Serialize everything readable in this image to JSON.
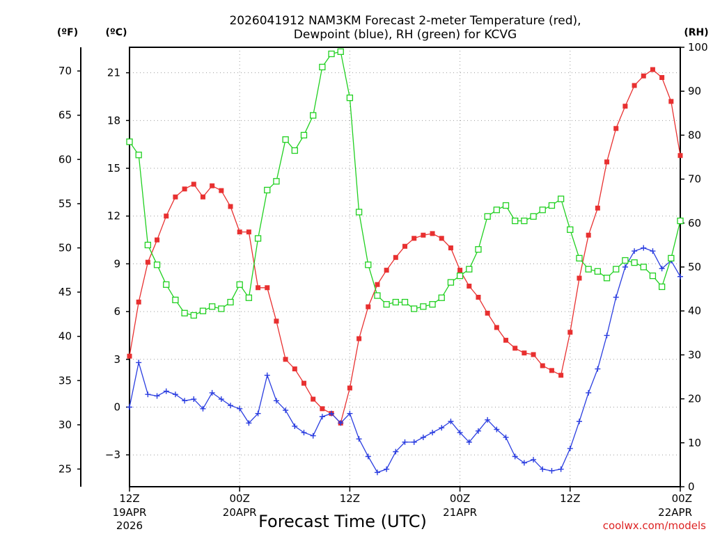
{
  "chart_data": {
    "type": "line",
    "title_line1": "2026041912 NAM3KM Forecast 2-meter Temperature (red),",
    "title_line2": "Dewpoint (blue), RH (green) for KCVG",
    "xlabel": "Forecast Time (UTC)",
    "credit": "coolwx.com/models",
    "units": {
      "fahrenheit": "(ºF)",
      "celsius": "(ºC)",
      "rh": "(RH)"
    },
    "x_range_hours": [
      0,
      60
    ],
    "x_ticks": [
      {
        "hour": 0,
        "line1": "12Z",
        "line2": "19APR",
        "line3": "2026"
      },
      {
        "hour": 12,
        "line1": "00Z",
        "line2": "20APR",
        "line3": ""
      },
      {
        "hour": 24,
        "line1": "12Z",
        "line2": "",
        "line3": ""
      },
      {
        "hour": 36,
        "line1": "00Z",
        "line2": "21APR",
        "line3": ""
      },
      {
        "hour": 48,
        "line1": "12Z",
        "line2": "",
        "line3": ""
      },
      {
        "hour": 60,
        "line1": "00Z",
        "line2": "22APR",
        "line3": ""
      }
    ],
    "celsius_axis": {
      "range": [
        -5,
        22.6
      ],
      "ticks": [
        "-3",
        "0",
        "3",
        "6",
        "9",
        "12",
        "15",
        "18",
        "21"
      ]
    },
    "fahrenheit_axis": {
      "ticks": [
        "25",
        "30",
        "35",
        "40",
        "45",
        "50",
        "55",
        "60",
        "65",
        "70"
      ]
    },
    "rh_axis": {
      "range": [
        0,
        100
      ],
      "ticks": [
        "0",
        "10",
        "20",
        "30",
        "40",
        "50",
        "60",
        "70",
        "80",
        "90",
        "100"
      ]
    },
    "hours": [
      0,
      1,
      2,
      3,
      4,
      5,
      6,
      7,
      8,
      9,
      10,
      11,
      12,
      13,
      14,
      15,
      16,
      17,
      18,
      19,
      20,
      21,
      22,
      23,
      24,
      25,
      26,
      27,
      28,
      29,
      30,
      31,
      32,
      33,
      34,
      35,
      36,
      37,
      38,
      39,
      40,
      41,
      42,
      43,
      44,
      45,
      46,
      47,
      48,
      49,
      50,
      51,
      52,
      53,
      54,
      55,
      56,
      57,
      58,
      59,
      60
    ],
    "series": [
      {
        "name": "2-meter Temperature",
        "unit": "C",
        "color": "#e83030",
        "marker": "filled-square",
        "values": [
          3.2,
          6.6,
          9.1,
          10.5,
          12.0,
          13.2,
          13.7,
          14.0,
          13.2,
          13.9,
          13.6,
          12.6,
          11.0,
          11.0,
          7.5,
          7.5,
          5.4,
          3.0,
          2.4,
          1.5,
          0.5,
          -0.1,
          -0.4,
          -1.0,
          1.2,
          4.3,
          6.3,
          7.7,
          8.6,
          9.4,
          10.1,
          10.6,
          10.8,
          10.9,
          10.6,
          10.0,
          8.6,
          7.6,
          6.9,
          5.9,
          5.0,
          4.2,
          3.7,
          3.4,
          3.3,
          2.6,
          2.3,
          2.0,
          4.7,
          8.1,
          10.8,
          12.5,
          15.4,
          17.5,
          18.9,
          20.2,
          20.8,
          21.2,
          20.7,
          19.2,
          15.8
        ]
      },
      {
        "name": "Dewpoint",
        "unit": "C",
        "color": "#2a3de0",
        "marker": "plus",
        "values": [
          0.0,
          2.8,
          0.8,
          0.7,
          1.0,
          0.8,
          0.4,
          0.5,
          -0.1,
          0.9,
          0.5,
          0.1,
          -0.1,
          -1.0,
          -0.4,
          2.0,
          0.4,
          -0.2,
          -1.2,
          -1.6,
          -1.8,
          -0.6,
          -0.4,
          -1.0,
          -0.4,
          -2.0,
          -3.1,
          -4.1,
          -3.9,
          -2.8,
          -2.2,
          -2.2,
          -1.9,
          -1.6,
          -1.3,
          -0.9,
          -1.6,
          -2.2,
          -1.5,
          -0.8,
          -1.4,
          -1.9,
          -3.1,
          -3.5,
          -3.3,
          -3.9,
          -4.0,
          -3.9,
          -2.6,
          -0.9,
          0.9,
          2.4,
          4.5,
          6.9,
          8.8,
          9.8,
          10.0,
          9.8,
          8.7,
          9.2,
          8.2
        ]
      },
      {
        "name": "RH",
        "unit": "%",
        "color": "#20d020",
        "marker": "open-square",
        "values": [
          78.5,
          75.5,
          55.0,
          50.5,
          46.0,
          42.5,
          39.5,
          39.0,
          40.0,
          41.0,
          40.5,
          42.0,
          46.0,
          43.0,
          56.5,
          67.5,
          69.5,
          79.0,
          76.5,
          80.0,
          84.5,
          95.5,
          98.5,
          99.0,
          88.5,
          62.5,
          50.5,
          43.5,
          41.5,
          42.0,
          42.0,
          40.5,
          41.0,
          41.5,
          43.0,
          46.5,
          48.0,
          49.5,
          54.0,
          61.5,
          63.0,
          64.0,
          60.5,
          60.5,
          61.5,
          63.0,
          64.0,
          65.5,
          58.5,
          52.0,
          49.5,
          49.0,
          47.5,
          49.5,
          51.5,
          51.0,
          50.0,
          48.0,
          45.5,
          52.0,
          60.5
        ]
      }
    ]
  }
}
